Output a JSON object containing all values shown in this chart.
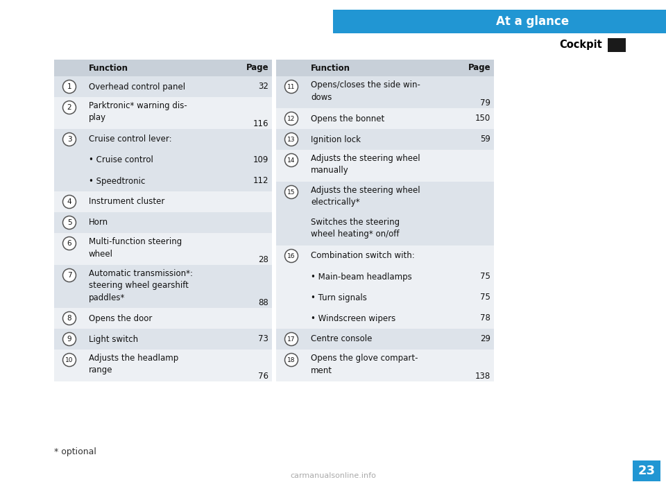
{
  "title_bar_text": "At a glance",
  "subtitle_text": "Cockpit",
  "title_bar_color": "#2196d3",
  "title_bar_text_color": "#ffffff",
  "subtitle_color": "#000000",
  "black_square_color": "#1a1a1a",
  "page_bg": "#ffffff",
  "table_bg_A": "#dde3ea",
  "table_bg_B": "#edf0f4",
  "header_bg": "#c8d0d9",
  "footer_text": "* optional",
  "page_number": "23",
  "page_number_bg": "#2196d3",
  "page_number_color": "#ffffff",
  "watermark": "carmanualsonline.info",
  "left_table": {
    "rows": [
      {
        "num": "1",
        "func": "Overhead control panel",
        "page": "32",
        "lines": 1
      },
      {
        "num": "2",
        "func": "Parktronic* warning dis-\nplay",
        "page": "116",
        "lines": 2
      },
      {
        "num": "3",
        "func": "Cruise control lever:",
        "page": "",
        "lines": 1
      },
      {
        "num": "",
        "func": "• Cruise control",
        "page": "109",
        "lines": 1
      },
      {
        "num": "",
        "func": "• Speedtronic",
        "page": "112",
        "lines": 1
      },
      {
        "num": "4",
        "func": "Instrument cluster",
        "page": "",
        "lines": 1
      },
      {
        "num": "5",
        "func": "Horn",
        "page": "",
        "lines": 1
      },
      {
        "num": "6",
        "func": "Multi-function steering\nwheel",
        "page": "28",
        "lines": 2
      },
      {
        "num": "7",
        "func": "Automatic transmission*:\nsteering wheel gearshift\npaddles*",
        "page": "88",
        "lines": 3
      },
      {
        "num": "8",
        "func": "Opens the door",
        "page": "",
        "lines": 1
      },
      {
        "num": "9",
        "func": "Light switch",
        "page": "73",
        "lines": 1
      },
      {
        "num": "10",
        "func": "Adjusts the headlamp\nrange",
        "page": "76",
        "lines": 2
      }
    ]
  },
  "right_table": {
    "rows": [
      {
        "num": "11",
        "func": "Opens/closes the side win-\ndows",
        "page": "79",
        "lines": 2
      },
      {
        "num": "12",
        "func": "Opens the bonnet",
        "page": "150",
        "lines": 1
      },
      {
        "num": "13",
        "func": "Ignition lock",
        "page": "59",
        "lines": 1
      },
      {
        "num": "14",
        "func": "Adjusts the steering wheel\nmanually",
        "page": "",
        "lines": 2
      },
      {
        "num": "15",
        "func": "Adjusts the steering wheel\nelectrically*",
        "page": "",
        "lines": 2
      },
      {
        "num": "",
        "func": "Switches the steering\nwheel heating* on/off",
        "page": "",
        "lines": 2
      },
      {
        "num": "16",
        "func": "Combination switch with:",
        "page": "",
        "lines": 1
      },
      {
        "num": "",
        "func": "• Main-beam headlamps",
        "page": "75",
        "lines": 1
      },
      {
        "num": "",
        "func": "• Turn signals",
        "page": "75",
        "lines": 1
      },
      {
        "num": "",
        "func": "• Windscreen wipers",
        "page": "78",
        "lines": 1
      },
      {
        "num": "17",
        "func": "Centre console",
        "page": "29",
        "lines": 1
      },
      {
        "num": "18",
        "func": "Opens the glove compart-\nment",
        "page": "138",
        "lines": 2
      }
    ]
  }
}
